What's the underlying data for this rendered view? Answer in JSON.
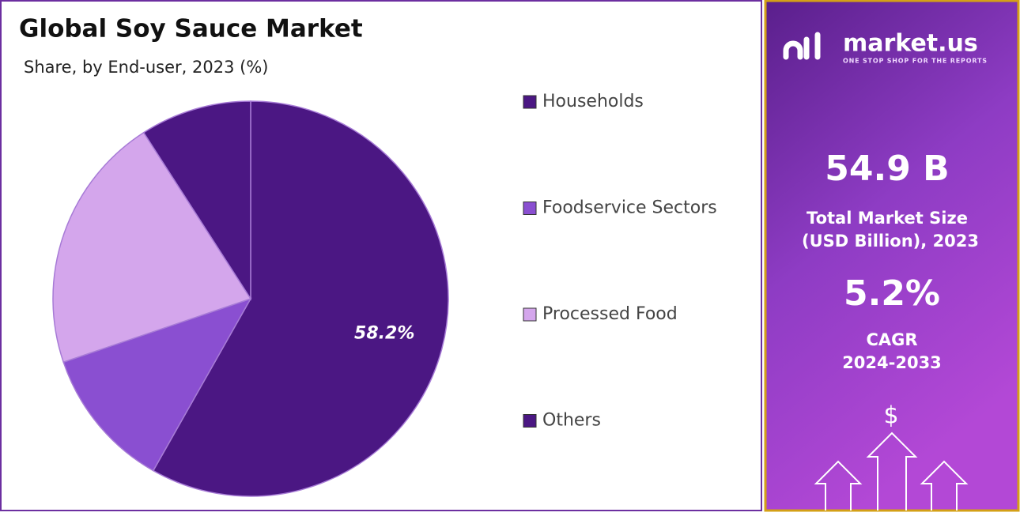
{
  "chart_data": {
    "type": "pie",
    "title": "Global Soy Sauce Market",
    "subtitle": "Share, by End-user, 2023 (%)",
    "categories": [
      "Households",
      "Foodservice Sectors",
      "Processed Food",
      "Others"
    ],
    "values": [
      58.2,
      11.6,
      21.1,
      9.1
    ],
    "value_labels": [
      "58.2%",
      null,
      null,
      null
    ],
    "colors": [
      "#4b1783",
      "#8a4fd1",
      "#d4a6ec",
      "#4b1783"
    ],
    "legend": "right"
  },
  "sidebar": {
    "brand": "market.us",
    "tagline": "ONE STOP SHOP FOR THE REPORTS",
    "market_size": "54.9 B",
    "market_size_label_1": "Total Market Size",
    "market_size_label_2": "(USD Billion), 2023",
    "cagr": "5.2%",
    "cagr_label_1": "CAGR",
    "cagr_label_2": "2024-2033",
    "currency_symbol": "$"
  }
}
